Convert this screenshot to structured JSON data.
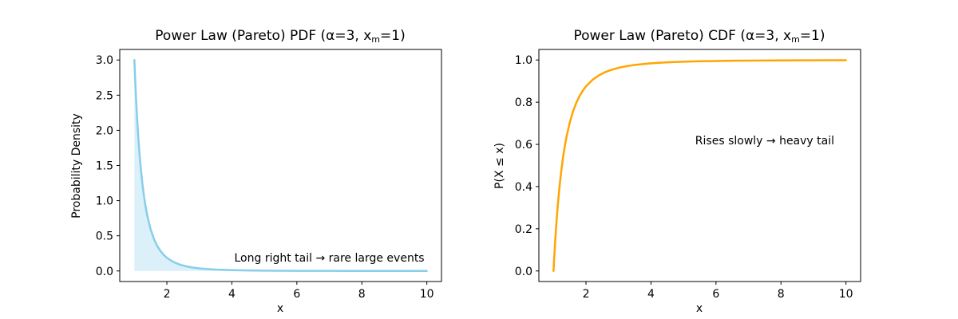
{
  "figure": {
    "background": "#ffffff",
    "frame_color": "#000000",
    "text_color": "#000000"
  },
  "chart_data": [
    {
      "type": "line",
      "title": {
        "prefix": "Power Law (Pareto) PDF (α=3, x",
        "sub": "m",
        "suffix": "=1)"
      },
      "xlabel": "x",
      "ylabel": "Probability Density",
      "xlim": [
        0.55,
        10.45
      ],
      "ylim": [
        -0.15,
        3.15
      ],
      "grid": false,
      "legend": null,
      "xticks": {
        "values": [
          2,
          4,
          6,
          8,
          10
        ],
        "labels": [
          "2",
          "4",
          "6",
          "8",
          "10"
        ]
      },
      "yticks": {
        "values": [
          0,
          0.5,
          1.0,
          1.5,
          2.0,
          2.5,
          3.0
        ],
        "labels": [
          "0.0",
          "0.5",
          "1.0",
          "1.5",
          "2.0",
          "2.5",
          "3.0"
        ]
      },
      "series": [
        {
          "name": "pareto-pdf",
          "color": "#87CEEB",
          "line_width": 2.5,
          "fill_below": true,
          "fill_color": "#87CEEB",
          "fill_opacity": 0.3,
          "fill_baseline": 0,
          "x": [
            1.0,
            1.02,
            1.05,
            1.08,
            1.12,
            1.16,
            1.2,
            1.25,
            1.3,
            1.35,
            1.4,
            1.5,
            1.6,
            1.7,
            1.8,
            1.9,
            2.0,
            2.2,
            2.4,
            2.6,
            2.8,
            3.0,
            3.25,
            3.5,
            4.0,
            4.5,
            5.0,
            5.5,
            6.0,
            6.5,
            7.0,
            7.5,
            8.0,
            8.5,
            9.0,
            9.5,
            10.0
          ],
          "y": [
            3.0,
            2.7716,
            2.4681,
            2.2051,
            1.9066,
            1.6569,
            1.4468,
            1.2288,
            1.0504,
            0.9032,
            0.7809,
            0.5926,
            0.4578,
            0.3592,
            0.2858,
            0.2302,
            0.1875,
            0.1281,
            0.0904,
            0.0657,
            0.0488,
            0.037,
            0.0269,
            0.02,
            0.0117,
            0.0073,
            0.0048,
            0.0033,
            0.0023,
            0.0017,
            0.0012,
            0.0009,
            0.0007,
            0.0006,
            0.0005,
            0.0004,
            0.0003
          ]
        }
      ],
      "annotation": {
        "text": "Long right tail → rare large events",
        "color": "#ff0000",
        "x": 7.0,
        "y": 0.19
      }
    },
    {
      "type": "line",
      "title": {
        "prefix": "Power Law (Pareto) CDF (α=3, x",
        "sub": "m",
        "suffix": "=1)"
      },
      "xlabel": "x",
      "ylabel": "P(X ≤ x)",
      "xlim": [
        0.55,
        10.45
      ],
      "ylim": [
        -0.05,
        1.05
      ],
      "grid": false,
      "legend": null,
      "xticks": {
        "values": [
          2,
          4,
          6,
          8,
          10
        ],
        "labels": [
          "2",
          "4",
          "6",
          "8",
          "10"
        ]
      },
      "yticks": {
        "values": [
          0,
          0.2,
          0.4,
          0.6,
          0.8,
          1.0
        ],
        "labels": [
          "0.0",
          "0.2",
          "0.4",
          "0.6",
          "0.8",
          "1.0"
        ]
      },
      "series": [
        {
          "name": "pareto-cdf",
          "color": "#FFA500",
          "line_width": 2.5,
          "fill_below": false,
          "x": [
            1.0,
            1.02,
            1.05,
            1.08,
            1.12,
            1.16,
            1.2,
            1.25,
            1.3,
            1.35,
            1.4,
            1.5,
            1.6,
            1.7,
            1.8,
            1.9,
            2.0,
            2.2,
            2.4,
            2.6,
            2.8,
            3.0,
            3.25,
            3.5,
            4.0,
            4.5,
            5.0,
            5.5,
            6.0,
            6.5,
            7.0,
            7.5,
            8.0,
            8.5,
            9.0,
            9.5,
            10.0
          ],
          "y": [
            0.0,
            0.0577,
            0.1362,
            0.2062,
            0.2882,
            0.3593,
            0.4213,
            0.488,
            0.5448,
            0.5936,
            0.6356,
            0.7037,
            0.7559,
            0.7965,
            0.8285,
            0.8542,
            0.875,
            0.9061,
            0.9277,
            0.9431,
            0.9544,
            0.963,
            0.9709,
            0.9767,
            0.9844,
            0.989,
            0.992,
            0.994,
            0.9954,
            0.9964,
            0.9971,
            0.9976,
            0.998,
            0.9984,
            0.9986,
            0.9988,
            0.999
          ]
        }
      ],
      "annotation": {
        "text": "Rises slowly → heavy tail",
        "color": "#ff0000",
        "x": 7.5,
        "y": 0.62
      }
    }
  ]
}
